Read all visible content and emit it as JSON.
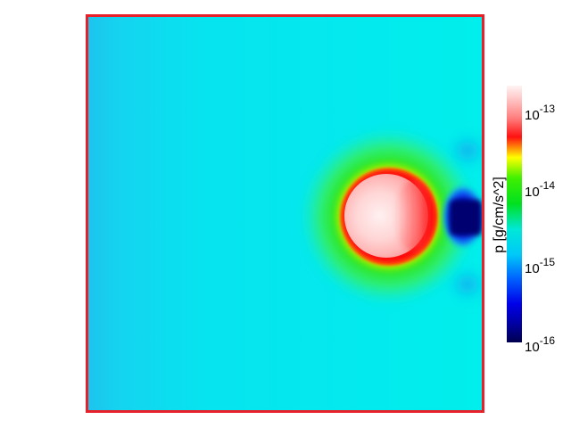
{
  "figure": {
    "quantity_label": "p [g/cm/s^2]",
    "frame_color": "#e8202a",
    "background_field_color": "#00e8ec",
    "colormap": {
      "name": "rainbow-like",
      "stops": [
        {
          "value_exp": -16,
          "color": "#00006a"
        },
        {
          "value_exp": -15.5,
          "color": "#0000ff"
        },
        {
          "value_exp": -15.2,
          "color": "#00aaff"
        },
        {
          "value_exp": -15.0,
          "color": "#00e8ec"
        },
        {
          "value_exp": -14.5,
          "color": "#00e000"
        },
        {
          "value_exp": -14.2,
          "color": "#ffff00"
        },
        {
          "value_exp": -13.8,
          "color": "#ff0000"
        },
        {
          "value_exp": -13.4,
          "color": "#ff9090"
        },
        {
          "value_exp": -13.0,
          "color": "#fff4f4"
        }
      ]
    },
    "colorbar_ticks": [
      {
        "base": "10",
        "exp": "-13"
      },
      {
        "base": "10",
        "exp": "-14"
      },
      {
        "base": "10",
        "exp": "-15"
      },
      {
        "base": "10",
        "exp": "-16"
      }
    ]
  }
}
